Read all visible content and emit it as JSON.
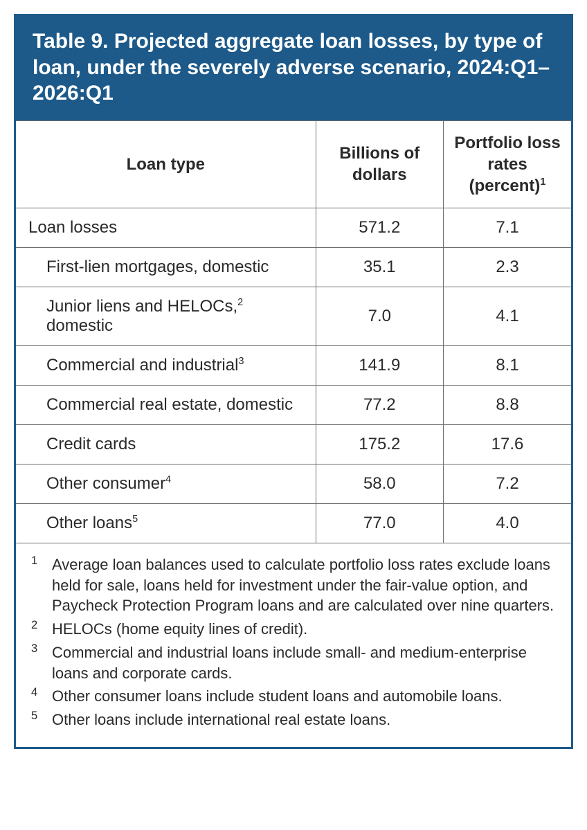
{
  "colors": {
    "frame": "#1d5a8a",
    "titleBg": "#1d5a8a",
    "titleText": "#ffffff",
    "rule": "#6e6e6e",
    "text": "#2a2a2a"
  },
  "table": {
    "title": "Table 9. Projected aggregate loan losses, by type of loan, under the severely adverse scenario, 2024:Q1–2026:Q1",
    "columns": [
      {
        "label": "Loan type",
        "sup": ""
      },
      {
        "label": "Billions of dollars",
        "sup": ""
      },
      {
        "label": "Portfolio loss rates (percent)",
        "sup": "1"
      }
    ],
    "rows": [
      {
        "label": "Loan losses",
        "sup": "",
        "indent": false,
        "c1": "571.2",
        "c2": "7.1"
      },
      {
        "label": "First-lien mortgages, domestic",
        "sup": "",
        "indent": true,
        "c1": "35.1",
        "c2": "2.3"
      },
      {
        "label": "Junior liens and HELOCs,",
        "sup": "2",
        "tail": " domestic",
        "indent": true,
        "c1": "7.0",
        "c2": "4.1"
      },
      {
        "label": "Commercial and industrial",
        "sup": "3",
        "indent": true,
        "c1": "141.9",
        "c2": "8.1"
      },
      {
        "label": "Commercial real estate, domestic",
        "sup": "",
        "indent": true,
        "c1": "77.2",
        "c2": "8.8"
      },
      {
        "label": "Credit cards",
        "sup": "",
        "indent": true,
        "c1": "175.2",
        "c2": "17.6"
      },
      {
        "label": "Other consumer",
        "sup": "4",
        "indent": true,
        "c1": "58.0",
        "c2": "7.2"
      },
      {
        "label": "Other loans",
        "sup": "5",
        "indent": true,
        "c1": "77.0",
        "c2": "4.0"
      }
    ],
    "footnotes": [
      {
        "num": "1",
        "text": "Average loan balances used to calculate portfolio loss rates exclude loans held for sale, loans held for investment under the fair-value option, and Paycheck Protection Program loans and are calculated over nine quarters."
      },
      {
        "num": "2",
        "text": "HELOCs (home equity lines of credit)."
      },
      {
        "num": "3",
        "text": "Commercial and industrial loans include small- and medium-enterprise loans and corporate cards."
      },
      {
        "num": "4",
        "text": "Other consumer loans include student loans and automobile loans."
      },
      {
        "num": "5",
        "text": "Other loans include international real estate loans."
      }
    ]
  }
}
